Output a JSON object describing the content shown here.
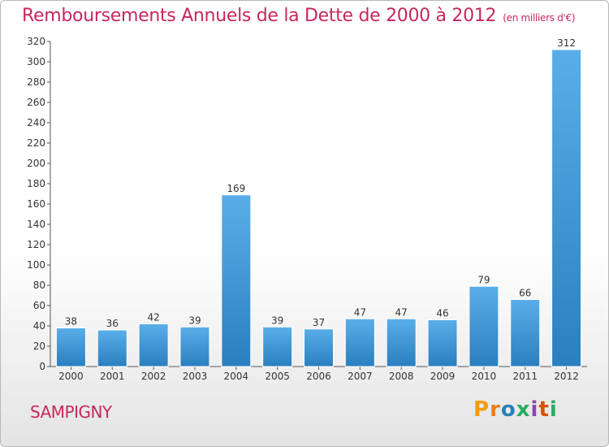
{
  "page": {
    "title": "Remboursements Annuels de la Dette de 2000 à 2012",
    "unit": "(en milliers d'€)",
    "location": "SAMPIGNY",
    "logo": {
      "text": "Proxiti",
      "colors": [
        "#f39c12",
        "#e67e22",
        "#2980b9",
        "#27ae60",
        "#8e44ad",
        "#d35400",
        "#27ae60"
      ]
    }
  },
  "chart_data": {
    "type": "bar",
    "title": "Remboursements Annuels de la Dette de 2000 à 2012",
    "categories": [
      "2000",
      "2001",
      "2002",
      "2003",
      "2004",
      "2005",
      "2006",
      "2007",
      "2008",
      "2009",
      "2010",
      "2011",
      "2012"
    ],
    "values": [
      38,
      36,
      42,
      39,
      169,
      39,
      37,
      47,
      47,
      46,
      79,
      66,
      312
    ],
    "ylim": [
      0,
      320
    ],
    "yticks": [
      0,
      20,
      40,
      60,
      80,
      100,
      120,
      140,
      160,
      180,
      200,
      220,
      240,
      260,
      280,
      300,
      320
    ],
    "grid": false,
    "bar_color_top": "#5aaee8",
    "bar_color_bottom": "#2a7fbf"
  }
}
